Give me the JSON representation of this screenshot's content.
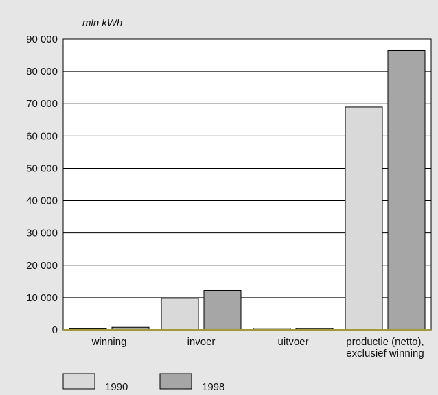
{
  "chart_data": {
    "type": "bar",
    "unit_label": "mln kWh",
    "categories": [
      [
        "winning"
      ],
      [
        "invoer"
      ],
      [
        "uitvoer"
      ],
      [
        "productie (netto),",
        "exclusief winning"
      ]
    ],
    "series": [
      {
        "name": "1990",
        "color": "#d9d9d9",
        "values": [
          300,
          9800,
          500,
          69000
        ]
      },
      {
        "name": "1998",
        "color": "#a6a6a6",
        "values": [
          800,
          12200,
          400,
          86500
        ]
      }
    ],
    "ylim": [
      0,
      90000
    ],
    "y_ticks": [
      0,
      10000,
      20000,
      30000,
      40000,
      50000,
      60000,
      70000,
      80000,
      90000
    ],
    "y_tick_labels": [
      "0",
      "10 000",
      "20 000",
      "30 000",
      "40 000",
      "50 000",
      "60 000",
      "70 000",
      "80 000",
      "90 000"
    ],
    "grid": true,
    "legend_position": "bottom-left"
  }
}
